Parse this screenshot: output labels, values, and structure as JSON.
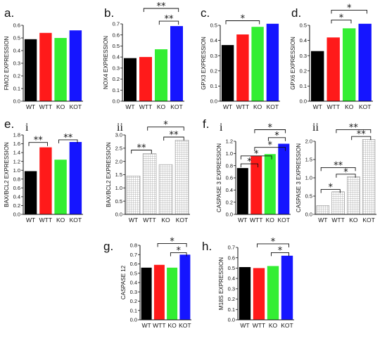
{
  "figure": {
    "colors": {
      "WT": "#000000",
      "WTT": "#ff1a1a",
      "KO": "#33ee33",
      "KOT": "#1515ff",
      "hatch": "#9a9a9a"
    }
  },
  "chart_data": [
    {
      "id": "a",
      "letter": "a.",
      "sub": "",
      "type": "bar",
      "style": "color",
      "categories": [
        "WT",
        "WTT",
        "KO",
        "KOT"
      ],
      "values": [
        0.49,
        0.54,
        0.5,
        0.56
      ],
      "ylabel": "FMO2 EXPRESSION",
      "ylim": [
        0,
        0.6
      ],
      "yticks": [
        0.0,
        0.1,
        0.2,
        0.3,
        0.4,
        0.5,
        0.6
      ],
      "ytick_labels": [
        "0.0",
        "0.1",
        "0.2",
        "0.3",
        "0.4",
        "0.5",
        "0.6"
      ],
      "annotations": []
    },
    {
      "id": "b",
      "letter": "b.",
      "sub": "",
      "type": "bar",
      "style": "color",
      "categories": [
        "WT",
        "WTT",
        "KO",
        "KOT"
      ],
      "values": [
        0.39,
        0.4,
        0.47,
        0.68
      ],
      "ylabel": "NOX4 EXPRESSION",
      "ylim": [
        0,
        0.7
      ],
      "yticks": [
        0.0,
        0.1,
        0.2,
        0.3,
        0.4,
        0.5,
        0.6,
        0.7
      ],
      "ytick_labels": [
        "0.0",
        "0.1",
        "0.2",
        "0.3",
        "0.4",
        "0.5",
        "0.6",
        "0.7"
      ],
      "annotations": [
        {
          "from": 2,
          "to": 3,
          "level": 0.725,
          "label": "**"
        },
        {
          "from": 1,
          "to": 3,
          "level": 0.84,
          "label": "**"
        }
      ]
    },
    {
      "id": "c",
      "letter": "c.",
      "sub": "",
      "type": "bar",
      "style": "color",
      "categories": [
        "WT",
        "WTT",
        "KO",
        "KOT"
      ],
      "values": [
        0.37,
        0.44,
        0.49,
        0.51
      ],
      "ylabel": "GPX3 EXPRESSION",
      "ylim": [
        0,
        0.5
      ],
      "yticks": [
        0.0,
        0.1,
        0.2,
        0.3,
        0.4,
        0.5
      ],
      "ytick_labels": [
        "0.0",
        "0.1",
        "0.2",
        "0.3",
        "0.4",
        "0.5"
      ],
      "annotations": [
        {
          "from": 0,
          "to": 2,
          "level": 0.53,
          "label": "*"
        }
      ]
    },
    {
      "id": "d",
      "letter": "d.",
      "sub": "",
      "type": "bar",
      "style": "color",
      "categories": [
        "WT",
        "WTT",
        "KO",
        "KOT"
      ],
      "values": [
        0.33,
        0.42,
        0.48,
        0.51
      ],
      "ylabel": "GPX6 EXPRESSION",
      "ylim": [
        0,
        0.5
      ],
      "yticks": [
        0.0,
        0.1,
        0.2,
        0.3,
        0.4,
        0.5
      ],
      "ytick_labels": [
        "0.0",
        "0.1",
        "0.2",
        "0.3",
        "0.4",
        "0.5"
      ],
      "annotations": [
        {
          "from": 1,
          "to": 2,
          "level": 0.535,
          "label": "*"
        },
        {
          "from": 1,
          "to": 3,
          "level": 0.6,
          "label": "*"
        }
      ]
    },
    {
      "id": "e-i",
      "letter": "e.",
      "sub": "i",
      "type": "bar",
      "style": "color",
      "categories": [
        "WT",
        "WTT",
        "KO",
        "KOT"
      ],
      "values": [
        0.98,
        1.52,
        1.24,
        1.64
      ],
      "ylabel": "BAX/BCL2 EXPRESSION",
      "ylim": [
        0,
        1.8
      ],
      "yticks": [
        0.0,
        0.2,
        0.4,
        0.6,
        0.8,
        1.0,
        1.2,
        1.4,
        1.6,
        1.8
      ],
      "ytick_labels": [
        "0.0",
        "0.2",
        "0.4",
        "0.6",
        "0.8",
        "1.0",
        "1.2",
        "1.4",
        "1.6",
        "1.8"
      ],
      "annotations": [
        {
          "from": 0,
          "to": 1,
          "level": 1.63,
          "label": "**"
        },
        {
          "from": 2,
          "to": 3,
          "level": 1.69,
          "label": "**"
        }
      ]
    },
    {
      "id": "e-ii",
      "letter": "",
      "sub": "ii",
      "type": "bar",
      "style": "hatch",
      "categories": [
        "WT",
        "WTT",
        "KO",
        "KOT"
      ],
      "values": [
        1.45,
        2.29,
        1.88,
        2.8
      ],
      "ylabel": "BAX/BCL2 EXPRESSION",
      "ylim": [
        0,
        3.0
      ],
      "yticks": [
        0.0,
        0.5,
        1.0,
        1.5,
        2.0,
        2.5,
        3.0
      ],
      "ytick_labels": [
        "0.0",
        "0.5",
        "1.0",
        "1.5",
        "2.0",
        "2.5",
        "3.0"
      ],
      "annotations": [
        {
          "from": 0,
          "to": 1,
          "level": 2.43,
          "label": "**"
        },
        {
          "from": 2,
          "to": 3,
          "level": 2.92,
          "label": "**"
        },
        {
          "from": 1,
          "to": 3,
          "level": 3.3,
          "label": "*"
        }
      ]
    },
    {
      "id": "f-i",
      "letter": "f.",
      "sub": "i",
      "type": "bar",
      "style": "color",
      "categories": [
        "WT",
        "WTT",
        "KO",
        "KOT"
      ],
      "values": [
        0.76,
        0.96,
        0.99,
        1.16
      ],
      "ylabel": "CASPASE 3 EXPRESSION",
      "ylim": [
        0,
        1.2
      ],
      "yticks": [
        0.0,
        0.2,
        0.4,
        0.6,
        0.8,
        1.0,
        1.2
      ],
      "ytick_labels": [
        "0.0",
        "0.2",
        "0.4",
        "0.6",
        "0.8",
        "1.0",
        "1.2"
      ],
      "annotations": [
        {
          "from": 0,
          "to": 1,
          "level": 0.83,
          "label": "*"
        },
        {
          "from": 0,
          "to": 2,
          "level": 0.96,
          "label": "*"
        },
        {
          "from": 1,
          "to": 3,
          "level": 1.1,
          "label": "*"
        },
        {
          "from": 2,
          "to": 3,
          "level": 1.26,
          "label": "*"
        },
        {
          "from": 1,
          "to": 3,
          "level": 1.39,
          "label": "*"
        }
      ]
    },
    {
      "id": "f-ii",
      "letter": "",
      "sub": "ii",
      "type": "bar",
      "style": "hatch",
      "categories": [
        "WT",
        "WTT",
        "KO",
        "KOT"
      ],
      "values": [
        0.24,
        0.62,
        1.03,
        2.05
      ],
      "ylabel": "CASPASE 3 EXPRESSION",
      "ylim": [
        0,
        2.0
      ],
      "yticks": [
        0.0,
        0.5,
        1.0,
        1.5,
        2.0
      ],
      "ytick_labels": [
        "0.0",
        "0.5",
        "1.0",
        "1.5",
        "2.0"
      ],
      "annotations": [
        {
          "from": 0,
          "to": 1,
          "level": 0.68,
          "label": "*"
        },
        {
          "from": 1,
          "to": 2,
          "level": 1.1,
          "label": "*"
        },
        {
          "from": 0,
          "to": 2,
          "level": 1.28,
          "label": "**"
        },
        {
          "from": 2,
          "to": 3,
          "level": 2.13,
          "label": "**"
        },
        {
          "from": 1,
          "to": 3,
          "level": 2.32,
          "label": "**"
        }
      ]
    },
    {
      "id": "g",
      "letter": "g.",
      "sub": "",
      "type": "bar",
      "style": "color",
      "categories": [
        "WT",
        "WTT",
        "KO",
        "KOT"
      ],
      "values": [
        0.56,
        0.59,
        0.56,
        0.7
      ],
      "ylabel": "CASPASE 12",
      "ylim": [
        0,
        0.8
      ],
      "yticks": [
        0.0,
        0.1,
        0.2,
        0.3,
        0.4,
        0.5,
        0.6,
        0.7,
        0.8
      ],
      "ytick_labels": [
        "0.0",
        "0.1",
        "0.2",
        "0.3",
        "0.4",
        "0.5",
        "0.6",
        "0.7",
        "0.8"
      ],
      "annotations": [
        {
          "from": 2,
          "to": 3,
          "level": 0.72,
          "label": "*"
        },
        {
          "from": 1,
          "to": 3,
          "level": 0.82,
          "label": "*"
        }
      ]
    },
    {
      "id": "h",
      "letter": "h.",
      "sub": "",
      "type": "bar",
      "style": "color",
      "categories": [
        "WT",
        "WTT",
        "KO",
        "KOT"
      ],
      "values": [
        0.51,
        0.5,
        0.52,
        0.62
      ],
      "ylabel": "M18S EXPRESSION",
      "ylim": [
        0,
        0.7
      ],
      "yticks": [
        0.0,
        0.1,
        0.2,
        0.3,
        0.4,
        0.5,
        0.6,
        0.7
      ],
      "ytick_labels": [
        "0.0",
        "0.1",
        "0.2",
        "0.3",
        "0.4",
        "0.5",
        "0.6",
        "0.7"
      ],
      "annotations": [
        {
          "from": 2,
          "to": 3,
          "level": 0.65,
          "label": "*"
        },
        {
          "from": 1,
          "to": 3,
          "level": 0.735,
          "label": "*"
        }
      ]
    }
  ]
}
